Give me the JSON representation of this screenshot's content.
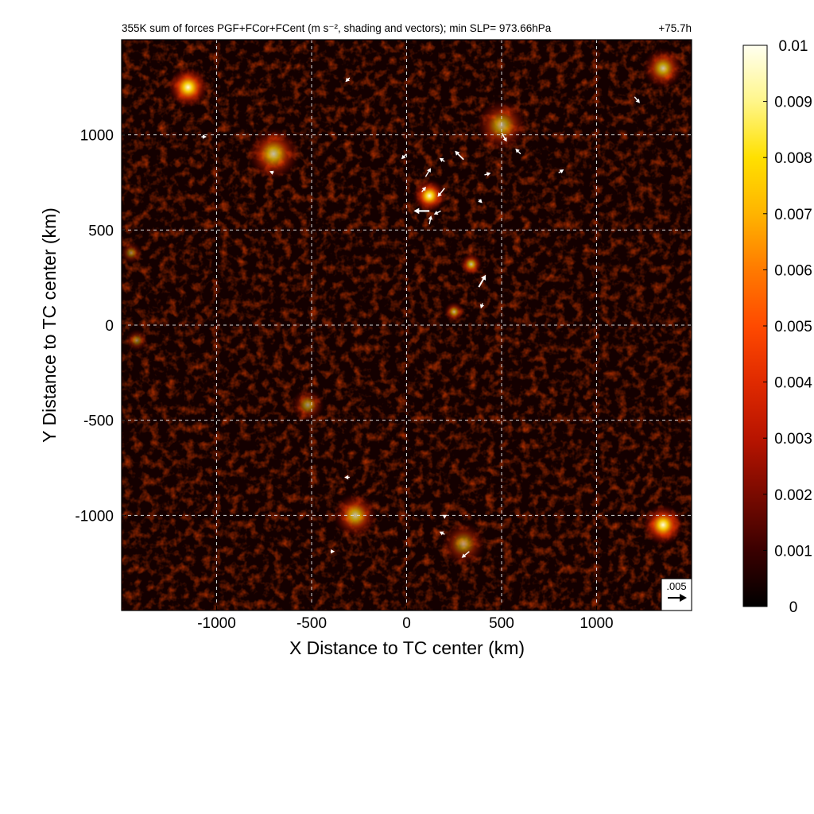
{
  "chart_data": {
    "type": "heatmap",
    "title": "355K sum of forces PGF+FCor+FCent (m s⁻², shading and vectors); min SLP= 973.66hPa",
    "time_label": "+75.7h",
    "xlabel": "X Distance to TC center (km)",
    "ylabel": "Y Distance to TC center (km)",
    "xlim": [
      -1500,
      1500
    ],
    "ylim": [
      -1500,
      1500
    ],
    "x_ticks": [
      -1000,
      -500,
      0,
      500,
      1000
    ],
    "y_ticks": [
      -1000,
      -500,
      0,
      500,
      1000
    ],
    "x_tick_labels": [
      "-1000",
      "-500",
      "0",
      "500",
      "1000"
    ],
    "y_tick_labels": [
      "-1000",
      "-500",
      "0",
      "500",
      "1000"
    ],
    "grid": true,
    "colorbar": {
      "range": [
        0,
        0.01
      ],
      "ticks": [
        0,
        0.001,
        0.002,
        0.003,
        0.004,
        0.005,
        0.006,
        0.007,
        0.008,
        0.009,
        0.01
      ],
      "tick_labels": [
        "0",
        "0.001",
        "0.002",
        "0.003",
        "0.004",
        "0.005",
        "0.006",
        "0.007",
        "0.008",
        "0.009",
        "0.01"
      ],
      "colors": [
        "#000000",
        "#3a0000",
        "#7a0a00",
        "#b81400",
        "#e02a00",
        "#ff4a00",
        "#ff7a00",
        "#ffb400",
        "#ffe000",
        "#fff68a",
        "#fffff0"
      ]
    },
    "reference_vector": {
      "label": ".005",
      "magnitude": 0.005
    },
    "hotspots": [
      {
        "x": 120,
        "y": 680,
        "magnitude": 0.0095,
        "spread_km": 90
      },
      {
        "x": 340,
        "y": 320,
        "magnitude": 0.006,
        "spread_km": 60
      },
      {
        "x": 250,
        "y": 70,
        "magnitude": 0.005,
        "spread_km": 55
      },
      {
        "x": -1150,
        "y": 1250,
        "magnitude": 0.0085,
        "spread_km": 110
      },
      {
        "x": -700,
        "y": 900,
        "magnitude": 0.006,
        "spread_km": 140
      },
      {
        "x": 1350,
        "y": 1350,
        "magnitude": 0.006,
        "spread_km": 110
      },
      {
        "x": 1350,
        "y": -1050,
        "magnitude": 0.0085,
        "spread_km": 110
      },
      {
        "x": -270,
        "y": -1000,
        "magnitude": 0.006,
        "spread_km": 120
      },
      {
        "x": 300,
        "y": -1150,
        "magnitude": 0.004,
        "spread_km": 120
      },
      {
        "x": -520,
        "y": -420,
        "magnitude": 0.004,
        "spread_km": 90
      },
      {
        "x": 500,
        "y": 1050,
        "magnitude": 0.005,
        "spread_km": 140
      },
      {
        "x": -1450,
        "y": 380,
        "magnitude": 0.003,
        "spread_km": 60
      },
      {
        "x": -1420,
        "y": -80,
        "magnitude": 0.003,
        "spread_km": 60
      }
    ],
    "vectors": [
      {
        "x": 120,
        "y": 600,
        "u": -0.0045,
        "v": 0.0
      },
      {
        "x": 200,
        "y": 720,
        "u": -0.002,
        "v": -0.0025
      },
      {
        "x": 100,
        "y": 780,
        "u": 0.0015,
        "v": 0.0025
      },
      {
        "x": 80,
        "y": 700,
        "u": 0.0012,
        "v": 0.0015
      },
      {
        "x": 180,
        "y": 600,
        "u": -0.002,
        "v": -0.001
      },
      {
        "x": 120,
        "y": 530,
        "u": 0.0005,
        "v": 0.0025
      },
      {
        "x": 300,
        "y": 870,
        "u": -0.0025,
        "v": 0.0025
      },
      {
        "x": 200,
        "y": 860,
        "u": -0.0015,
        "v": 0.001
      },
      {
        "x": 410,
        "y": 790,
        "u": 0.0018,
        "v": 0.0005
      },
      {
        "x": 380,
        "y": 660,
        "u": 0.001,
        "v": -0.001
      },
      {
        "x": 380,
        "y": 200,
        "u": 0.002,
        "v": 0.0035
      },
      {
        "x": 400,
        "y": 115,
        "u": -0.0005,
        "v": -0.0015
      },
      {
        "x": 500,
        "y": 1010,
        "u": 0.0015,
        "v": -0.0025
      },
      {
        "x": 600,
        "y": 900,
        "u": -0.0015,
        "v": 0.0015
      },
      {
        "x": 800,
        "y": 800,
        "u": 0.0015,
        "v": 0.001
      },
      {
        "x": 1200,
        "y": 1200,
        "u": 0.0015,
        "v": -0.0018
      },
      {
        "x": 330,
        "y": -1190,
        "u": -0.0022,
        "v": -0.0018
      },
      {
        "x": 200,
        "y": -1100,
        "u": -0.0015,
        "v": 0.0008
      },
      {
        "x": 200,
        "y": -1000,
        "u": 0.0,
        "v": -0.001
      },
      {
        "x": -300,
        "y": -800,
        "u": -0.0015,
        "v": 0.0
      },
      {
        "x": -400,
        "y": -1190,
        "u": 0.0012,
        "v": 0.0
      },
      {
        "x": -1080,
        "y": 990,
        "u": 0.0015,
        "v": 0.0
      },
      {
        "x": 0,
        "y": 900,
        "u": -0.0015,
        "v": -0.0015
      },
      {
        "x": -700,
        "y": 800,
        "u": -0.0012,
        "v": 0.0005
      },
      {
        "x": -300,
        "y": 1300,
        "u": -0.0012,
        "v": -0.0012
      }
    ]
  }
}
